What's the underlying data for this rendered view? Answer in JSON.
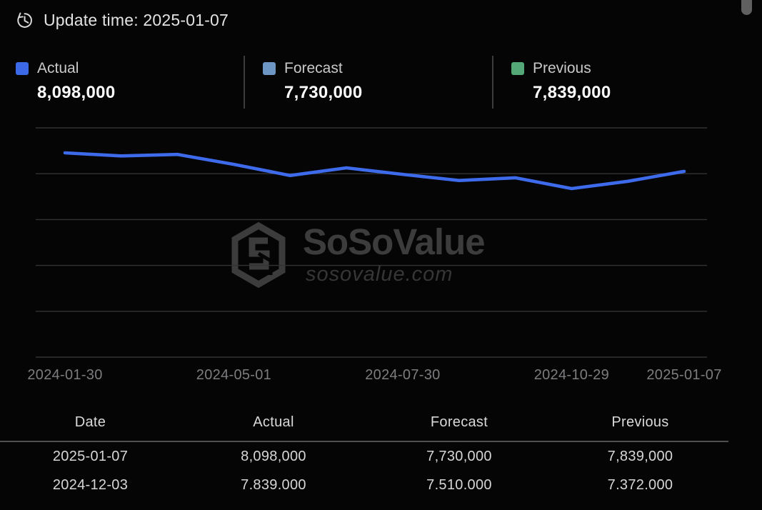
{
  "header": {
    "update_time_label": "Update time: 2025-01-07"
  },
  "legend": {
    "items": [
      {
        "label": "Actual",
        "value": "8,098,000",
        "color": "#3C69E8"
      },
      {
        "label": "Forecast",
        "value": "7,730,000",
        "color": "#6E96C5"
      },
      {
        "label": "Previous",
        "value": "7,839,000",
        "color": "#54A878"
      }
    ]
  },
  "watermark": {
    "brand": "SoSoValue",
    "domain": "sosovalue.com"
  },
  "chart_data": {
    "type": "line",
    "title": "",
    "xlabel": "",
    "ylabel": "",
    "num_points": 12,
    "x_tick_labels": [
      {
        "label": "2024-01-30",
        "index": 0
      },
      {
        "label": "2024-05-01",
        "index": 3
      },
      {
        "label": "2024-07-30",
        "index": 6
      },
      {
        "label": "2024-10-29",
        "index": 9
      },
      {
        "label": "2025-01-07",
        "index": 11
      }
    ],
    "series": [
      {
        "name": "Actual",
        "color": "#3E6BEB",
        "values": [
          8580000,
          8500000,
          8540000,
          8280000,
          7990000,
          8190000,
          8020000,
          7860000,
          7930000,
          7650000,
          7839000,
          8098000
        ]
      }
    ],
    "value_range": [
      7650000,
      8580000
    ],
    "grid": {
      "horizontal_lines": 6,
      "vertical_lines": 0,
      "color": "#333333"
    },
    "legend_position": "top"
  },
  "table": {
    "headers": [
      "Date",
      "Actual",
      "Forecast",
      "Previous"
    ],
    "rows": [
      [
        "2025-01-07",
        "8,098,000",
        "7,730,000",
        "7,839,000"
      ],
      [
        "2024-12-03",
        "7.839.000",
        "7.510.000",
        "7.372.000"
      ]
    ]
  },
  "colors": {
    "background": "#050505",
    "accent_blue": "#3C69E8",
    "forecast_blue": "#6E96C5",
    "previous_green": "#54A878",
    "gridline": "#333333",
    "axis_label": "#7D7D80"
  }
}
